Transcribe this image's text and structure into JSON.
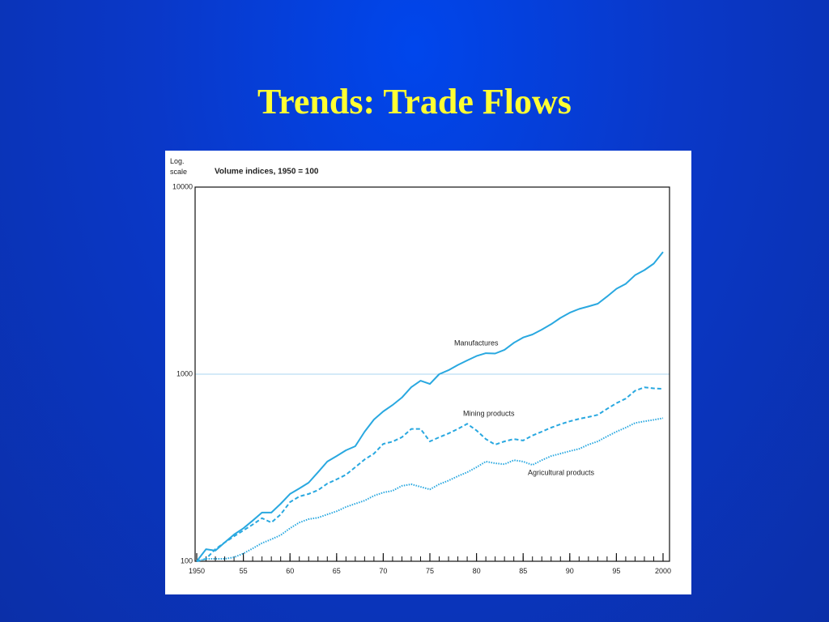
{
  "slide_title": "Trends: Trade Flows",
  "chart_data": {
    "type": "line",
    "title": "Volume indices, 1950 = 100",
    "y_label": "Log. scale",
    "log_y": true,
    "grid": true,
    "x": [
      1950,
      1951,
      1952,
      1953,
      1954,
      1955,
      1956,
      1957,
      1958,
      1959,
      1960,
      1961,
      1962,
      1963,
      1964,
      1965,
      1966,
      1967,
      1968,
      1969,
      1970,
      1971,
      1972,
      1973,
      1974,
      1975,
      1976,
      1977,
      1978,
      1979,
      1980,
      1981,
      1982,
      1983,
      1984,
      1985,
      1986,
      1987,
      1988,
      1989,
      1990,
      1991,
      1992,
      1993,
      1994,
      1995,
      1996,
      1997,
      1998,
      1999,
      2000
    ],
    "xlim": [
      1950,
      2000
    ],
    "xticks": [
      {
        "value": 1950,
        "label": "1950"
      },
      {
        "value": 1955,
        "label": "55"
      },
      {
        "value": 1960,
        "label": "60"
      },
      {
        "value": 1965,
        "label": "65"
      },
      {
        "value": 1970,
        "label": "70"
      },
      {
        "value": 1975,
        "label": "75"
      },
      {
        "value": 1980,
        "label": "80"
      },
      {
        "value": 1985,
        "label": "85"
      },
      {
        "value": 1990,
        "label": "90"
      },
      {
        "value": 1995,
        "label": "95"
      },
      {
        "value": 2000,
        "label": "2000"
      }
    ],
    "ylim": [
      100,
      10000
    ],
    "yticks": [
      100,
      1000,
      10000
    ],
    "series": [
      {
        "name": "Manufactures",
        "color": "#29a8e0",
        "style": "solid",
        "values": [
          100,
          116,
          114,
          126,
          139,
          150,
          165,
          182,
          182,
          203,
          229,
          245,
          263,
          299,
          341,
          365,
          392,
          412,
          493,
          572,
          632,
          684,
          750,
          852,
          922,
          886,
          1000,
          1050,
          1120,
          1185,
          1250,
          1295,
          1290,
          1350,
          1470,
          1570,
          1630,
          1730,
          1850,
          2000,
          2130,
          2230,
          2300,
          2380,
          2600,
          2860,
          3040,
          3380,
          3600,
          3900,
          4500
        ]
      },
      {
        "name": "Mining products",
        "color": "#29a8e0",
        "style": "dashed",
        "values": [
          100,
          103,
          116,
          126,
          136,
          146,
          157,
          170,
          161,
          178,
          207,
          222,
          229,
          240,
          260,
          274,
          290,
          318,
          350,
          376,
          424,
          436,
          460,
          510,
          510,
          437,
          460,
          482,
          510,
          543,
          500,
          450,
          420,
          437,
          450,
          442,
          470,
          493,
          518,
          540,
          560,
          577,
          590,
          606,
          653,
          700,
          740,
          815,
          850,
          840,
          835
        ]
      },
      {
        "name": "Agricultural products",
        "color": "#29a8e0",
        "style": "dotted",
        "values": [
          100,
          103,
          103,
          103,
          105,
          110,
          117,
          125,
          131,
          138,
          150,
          161,
          168,
          171,
          178,
          185,
          195,
          203,
          211,
          224,
          233,
          238,
          253,
          258,
          250,
          242,
          258,
          270,
          285,
          299,
          318,
          341,
          334,
          330,
          347,
          341,
          327,
          347,
          365,
          376,
          388,
          399,
          420,
          437,
          465,
          493,
          518,
          548,
          560,
          570,
          582
        ]
      }
    ]
  }
}
